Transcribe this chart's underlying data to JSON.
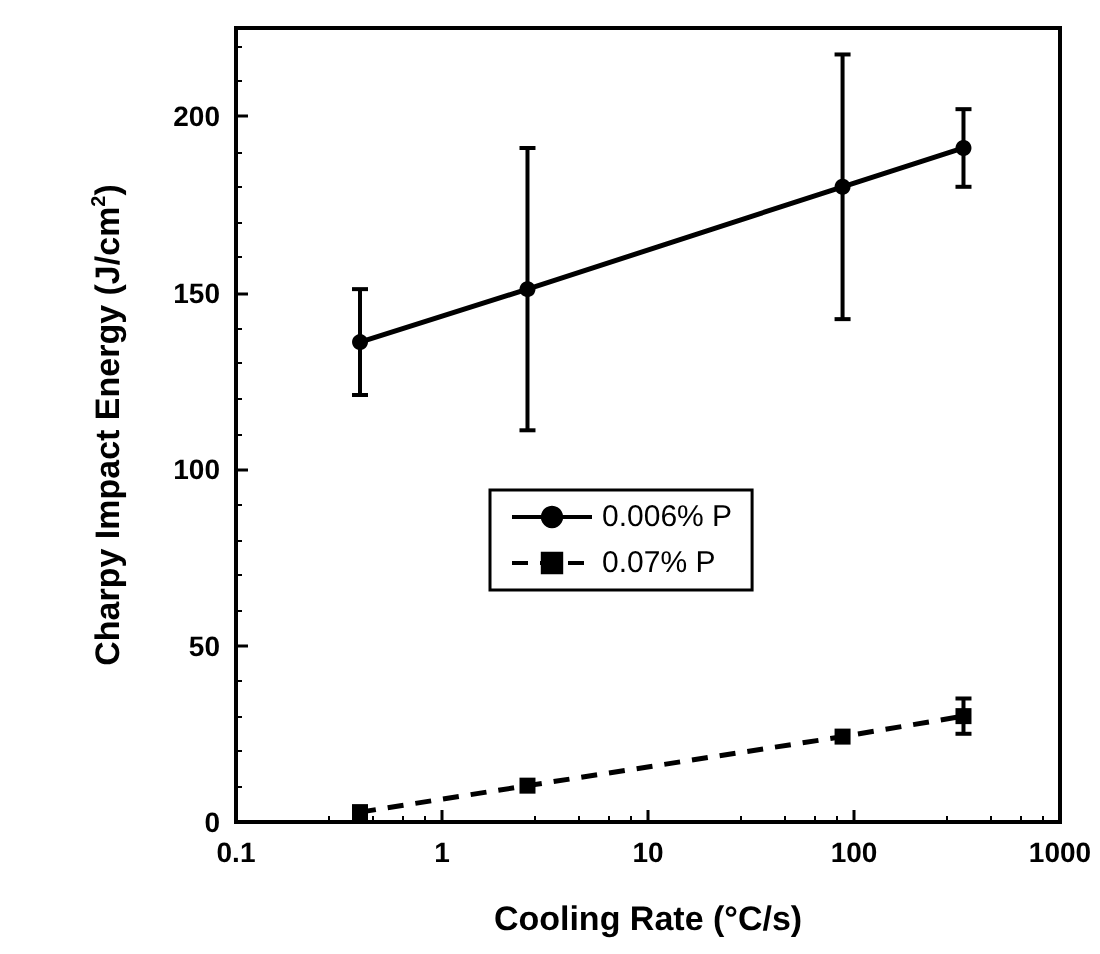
{
  "chart_data": {
    "type": "line",
    "xlabel": "Cooling Rate (°C/s)",
    "ylabel": "Charpy Impact Energy (J/cm$^{2}$)",
    "log": "x",
    "xlim": [
      0.1,
      1000
    ],
    "xticks": [
      0.1,
      1,
      10,
      100,
      1000
    ],
    "ylim": [
      0,
      225
    ],
    "yticks": [
      0,
      50,
      100,
      150,
      200
    ],
    "grid": false,
    "legend": "center",
    "series": [
      {
        "name": "0.006% P",
        "color": "#000000",
        "marker": "circle",
        "line_style": "solid",
        "x": [
          0.4,
          2.6,
          88,
          340
        ],
        "values": [
          136,
          151,
          180,
          191
        ],
        "errors": [
          15,
          40,
          37.5,
          11
        ]
      },
      {
        "name": "0.07% P",
        "color": "#000000",
        "marker": "square",
        "line_style": "dashed",
        "x": [
          0.4,
          2.6,
          88,
          340
        ],
        "values": [
          2.8,
          10.3,
          24.2,
          30
        ],
        "errors": [
          null,
          null,
          null,
          5
        ]
      }
    ]
  }
}
